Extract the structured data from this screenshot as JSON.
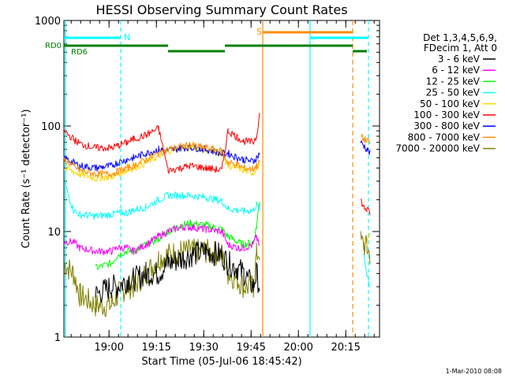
{
  "chart_data": {
    "type": "line",
    "title": "HESSI Observing Summary Count Rates",
    "xlabel": "Start Time (05-Jul-06 18:45:42)",
    "ylabel": "Count Rate (s⁻¹ detector⁻¹)",
    "yscale": "log",
    "ylim": [
      1,
      1000
    ],
    "x_unit": "minutes since 18:45:42",
    "xlim": [
      0,
      100
    ],
    "x_ticks": [
      {
        "x": 14.3,
        "label": "19:00"
      },
      {
        "x": 29.3,
        "label": "19:15"
      },
      {
        "x": 44.3,
        "label": "19:30"
      },
      {
        "x": 59.3,
        "label": "19:45"
      },
      {
        "x": 74.3,
        "label": "20:00"
      },
      {
        "x": 89.3,
        "label": "20:15"
      }
    ],
    "y_ticks": [
      {
        "y": 1,
        "label": "1"
      },
      {
        "y": 10,
        "label": "10"
      },
      {
        "y": 100,
        "label": "100"
      },
      {
        "y": 1000,
        "label": "1000"
      }
    ],
    "legend_header": [
      "Det 1,3,4,5,6,9,",
      "FDecim 1, Att 0"
    ],
    "series": [
      {
        "name": "3 - 6 keV",
        "color": "#000000",
        "x": [
          0,
          3,
          5,
          10,
          15,
          17,
          20,
          22,
          26,
          30,
          33,
          37,
          40,
          45,
          50,
          52,
          55,
          57,
          60,
          61,
          62
        ],
        "y": [
          null,
          null,
          null,
          2.5,
          3,
          3,
          3.5,
          3.5,
          4,
          4,
          5,
          5.5,
          6,
          6.5,
          6,
          5,
          4.5,
          4,
          3,
          4,
          3
        ]
      },
      {
        "name": "6 - 12 keV",
        "color": "#ff00ff",
        "x": [
          0,
          3,
          5,
          10,
          15,
          17,
          20,
          22,
          26,
          30,
          33,
          37,
          40,
          45,
          50,
          52,
          55,
          57,
          60,
          61,
          62,
          94,
          95,
          96,
          97
        ],
        "y": [
          8,
          8,
          7,
          6.5,
          6.5,
          7,
          7,
          6.5,
          7.5,
          9,
          10,
          11,
          11,
          10.5,
          10,
          7.5,
          7,
          7,
          7.5,
          9,
          7,
          null,
          null,
          null,
          null
        ]
      },
      {
        "name": "12 - 25 keV",
        "color": "#00ff00",
        "x": [
          0,
          3,
          5,
          10,
          15,
          17,
          20,
          22,
          26,
          30,
          33,
          37,
          40,
          45,
          50,
          52,
          55,
          57,
          60,
          61,
          62
        ],
        "y": [
          null,
          null,
          null,
          4.5,
          5,
          6,
          6.5,
          6.5,
          7.5,
          8.5,
          10,
          11.5,
          12,
          11.5,
          10.5,
          9,
          8,
          7.5,
          8,
          11,
          20
        ]
      },
      {
        "name": "25 - 50 keV",
        "color": "#00ffff",
        "x": [
          0,
          3,
          5,
          10,
          15,
          17,
          20,
          22,
          26,
          30,
          33,
          37,
          40,
          45,
          50,
          52,
          55,
          57,
          60,
          61,
          62,
          94,
          95,
          96,
          97
        ],
        "y": [
          30,
          16,
          14.5,
          14,
          14.5,
          15,
          15,
          16,
          17,
          20,
          22,
          22,
          22,
          21,
          19.5,
          16.5,
          16,
          15.5,
          16,
          18,
          16,
          null,
          6,
          4,
          3
        ]
      },
      {
        "name": "50 - 100 keV",
        "color": "#ffd700",
        "x": [
          0,
          3,
          5,
          10,
          15,
          17,
          20,
          22,
          26,
          30,
          33,
          37,
          40,
          45,
          50,
          52,
          55,
          57,
          60,
          61,
          62,
          94,
          95,
          96,
          97
        ],
        "y": [
          40,
          37,
          35,
          32,
          33,
          35,
          38,
          40,
          45,
          52,
          58,
          62,
          63,
          60,
          55,
          42,
          40,
          38,
          36,
          40,
          42,
          null,
          null,
          8,
          9
        ]
      },
      {
        "name": "100 - 300 keV",
        "color": "#ff0000",
        "x": [
          0,
          3,
          5,
          10,
          15,
          17,
          20,
          22,
          26,
          30,
          33,
          37,
          40,
          45,
          50,
          52,
          55,
          57,
          60,
          61,
          62,
          94,
          95,
          96,
          97
        ],
        "y": [
          90,
          75,
          68,
          62,
          62,
          65,
          70,
          75,
          82,
          95,
          38,
          40,
          42,
          40,
          38,
          90,
          78,
          72,
          70,
          80,
          130,
          20,
          17,
          16,
          15
        ]
      },
      {
        "name": "300 - 800 keV",
        "color": "#0000ff",
        "x": [
          0,
          3,
          5,
          10,
          15,
          17,
          20,
          22,
          26,
          30,
          33,
          37,
          40,
          45,
          50,
          52,
          55,
          57,
          60,
          61,
          62,
          94,
          95,
          96,
          97
        ],
        "y": [
          50,
          45,
          42,
          40,
          42,
          45,
          48,
          50,
          55,
          60,
          58,
          62,
          63,
          60,
          55,
          55,
          50,
          48,
          46,
          50,
          55,
          70,
          65,
          60,
          55
        ]
      },
      {
        "name": "800 - 7000 keV",
        "color": "#ff8c00",
        "x": [
          0,
          3,
          5,
          10,
          15,
          17,
          20,
          22,
          26,
          30,
          33,
          37,
          40,
          45,
          50,
          52,
          55,
          57,
          60,
          61,
          62,
          94,
          95,
          96,
          97
        ],
        "y": [
          48,
          42,
          38,
          35,
          35,
          37,
          40,
          42,
          48,
          55,
          60,
          64,
          66,
          62,
          58,
          45,
          43,
          40,
          39,
          42,
          45,
          80,
          75,
          72,
          70
        ]
      },
      {
        "name": "7000 - 20000 keV",
        "color": "#808000",
        "x": [
          0,
          3,
          5,
          10,
          15,
          17,
          20,
          22,
          26,
          30,
          33,
          37,
          40,
          45,
          50,
          52,
          55,
          57,
          60,
          61,
          62,
          94,
          95,
          96,
          97
        ],
        "y": [
          5,
          4,
          2.5,
          2,
          2,
          2.5,
          3,
          3,
          4,
          5.5,
          6,
          6.5,
          6.5,
          6.5,
          6,
          4,
          3.5,
          3,
          3,
          6,
          6.5,
          8,
          7.5,
          7,
          6
        ]
      }
    ],
    "flag_lines": [
      {
        "label": "RD0",
        "color": "#008000"
      },
      {
        "label": "RD6",
        "color": "#008000"
      },
      {
        "label": "N",
        "color": "#00ffff"
      },
      {
        "label": "S",
        "color": "#ff8c00"
      }
    ]
  },
  "footer": {
    "timestamp": "1-Mar-2010 08:08"
  }
}
